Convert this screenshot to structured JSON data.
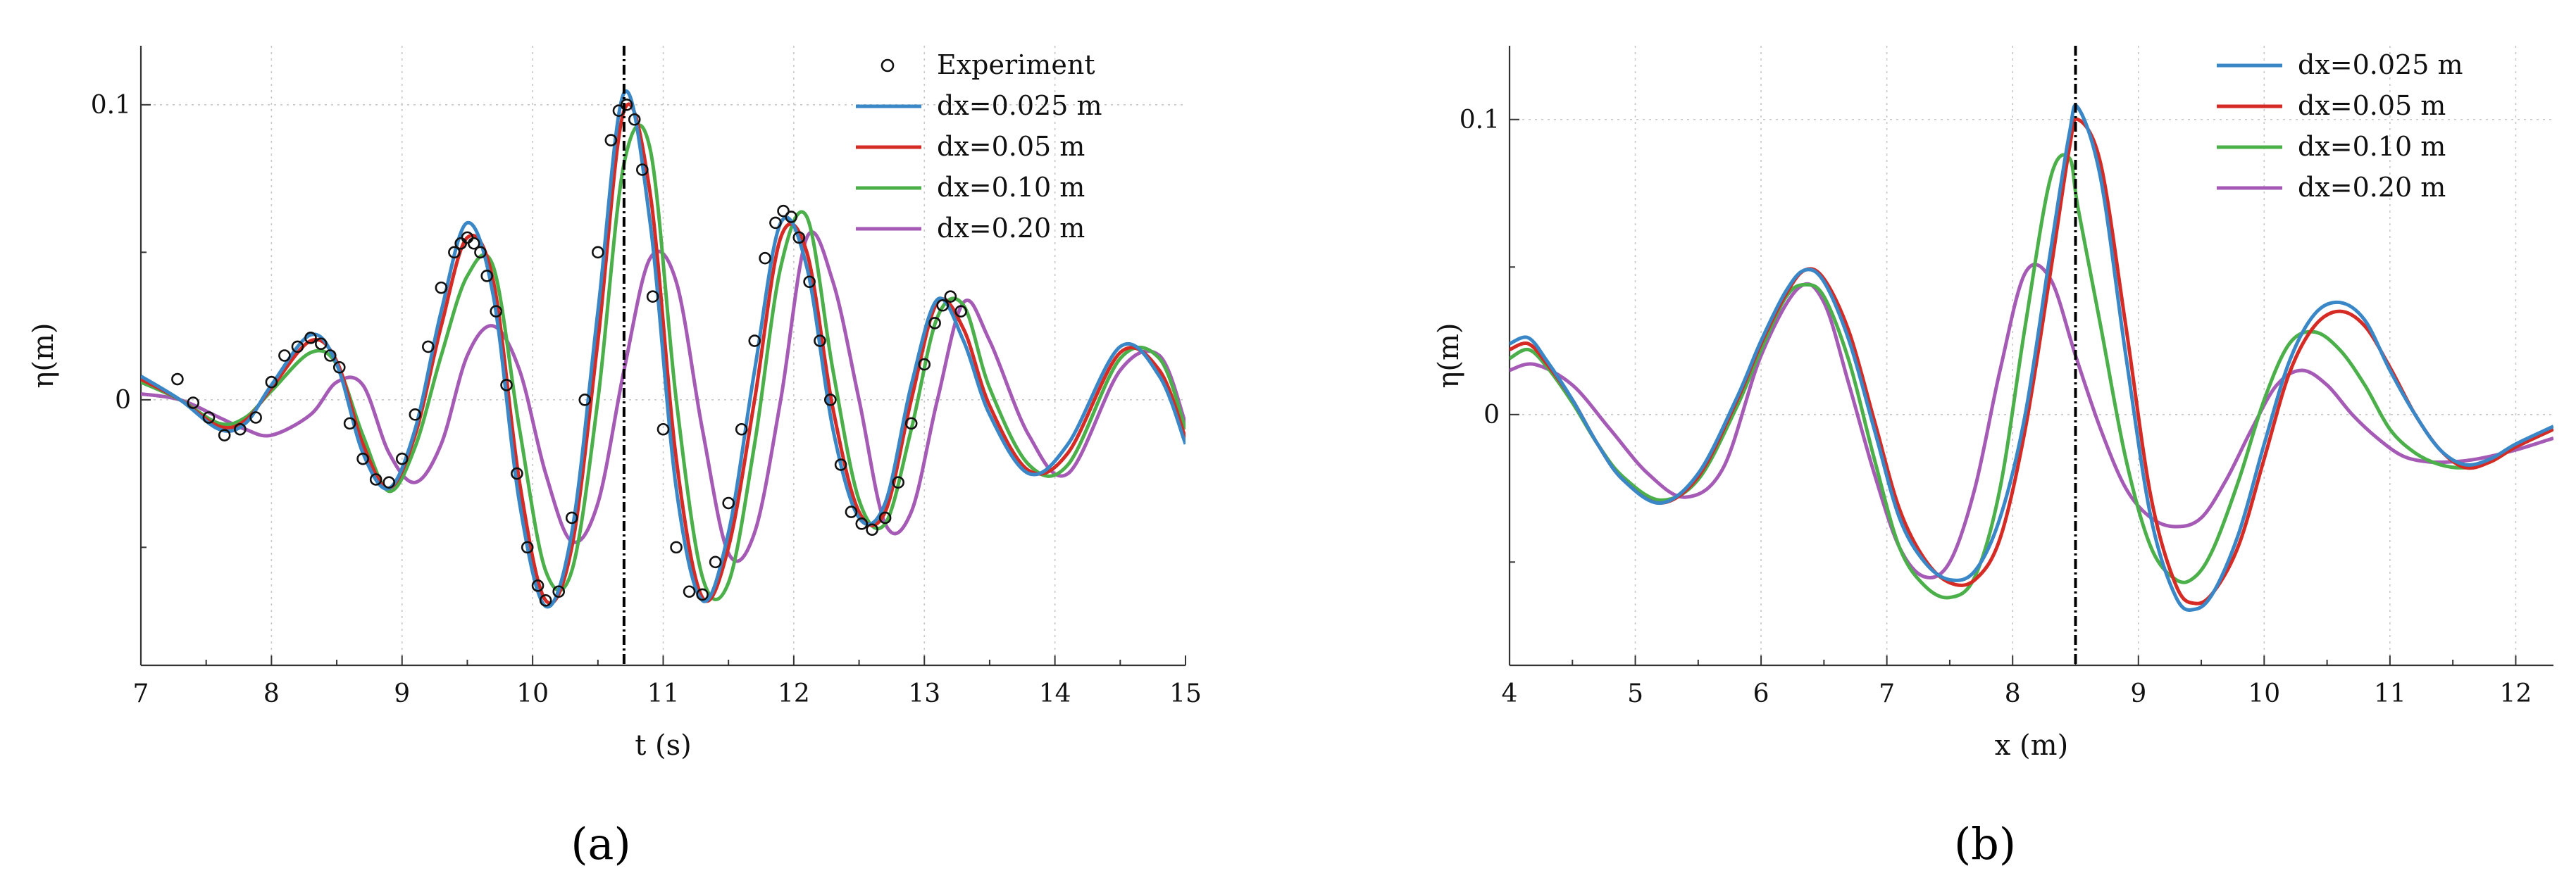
{
  "panels": [
    {
      "id": "a",
      "panel_label": "(a)",
      "xlabel": "t (s)",
      "ylabel": "η(m)",
      "xlim": [
        7,
        15
      ],
      "ylim": [
        -0.09,
        0.12
      ],
      "xticks": [
        7,
        8,
        9,
        10,
        11,
        12,
        13,
        14,
        15
      ],
      "yticks": [
        0,
        0.1
      ],
      "xtick_labels": [
        "7",
        "8",
        "9",
        "10",
        "11",
        "12",
        "13",
        "14",
        "15"
      ],
      "ytick_labels": [
        "0",
        "0.1"
      ],
      "vline_x": 10.7,
      "legend": [
        "Experiment",
        "dx=0.025 m",
        "dx=0.05 m",
        "dx=0.10 m",
        "dx=0.20 m"
      ]
    },
    {
      "id": "b",
      "panel_label": "(b)",
      "xlabel": "x (m)",
      "ylabel": "η(m)",
      "xlim": [
        4,
        12.3
      ],
      "ylim": [
        -0.085,
        0.125
      ],
      "xticks": [
        4,
        5,
        6,
        7,
        8,
        9,
        10,
        11,
        12
      ],
      "yticks": [
        0,
        0.1
      ],
      "xtick_labels": [
        "4",
        "5",
        "6",
        "7",
        "8",
        "9",
        "10",
        "11",
        "12"
      ],
      "ytick_labels": [
        "0",
        "0.1"
      ],
      "vline_x": 8.5,
      "legend": [
        "dx=0.025 m",
        "dx=0.05 m",
        "dx=0.10 m",
        "dx=0.20 m"
      ]
    }
  ],
  "colors": {
    "dx_0_025": "#3a87c8",
    "dx_0_05": "#d62a24",
    "dx_0_10": "#4cb04a",
    "dx_0_20": "#a55bb5",
    "experiment": "#111111"
  },
  "chart_data": [
    {
      "type": "line",
      "panel": "a",
      "xlabel": "t (s)",
      "ylabel": "η(m)",
      "xlim": [
        7,
        15
      ],
      "ylim": [
        -0.09,
        0.12
      ],
      "series": [
        {
          "name": "dx=0.025 m",
          "color": "#3a87c8",
          "x": [
            7,
            7.3,
            7.6,
            7.8,
            8.0,
            8.3,
            8.5,
            8.7,
            8.9,
            9.1,
            9.3,
            9.5,
            9.7,
            9.9,
            10.1,
            10.3,
            10.5,
            10.7,
            10.9,
            11.1,
            11.3,
            11.5,
            11.7,
            11.9,
            12.1,
            12.3,
            12.5,
            12.7,
            12.9,
            13.1,
            13.3,
            13.5,
            13.8,
            14.1,
            14.5,
            14.8,
            15
          ],
          "y": [
            0.008,
            0.0,
            -0.01,
            -0.008,
            0.005,
            0.022,
            0.012,
            -0.018,
            -0.03,
            -0.01,
            0.03,
            0.06,
            0.035,
            -0.035,
            -0.07,
            -0.045,
            0.03,
            0.104,
            0.06,
            -0.03,
            -0.068,
            -0.045,
            0.01,
            0.06,
            0.045,
            -0.01,
            -0.04,
            -0.035,
            0.005,
            0.034,
            0.02,
            -0.005,
            -0.025,
            -0.015,
            0.018,
            0.008,
            -0.015
          ]
        },
        {
          "name": "dx=0.05 m",
          "color": "#d62a24",
          "x": [
            7,
            7.3,
            7.6,
            7.8,
            8.0,
            8.3,
            8.5,
            8.7,
            8.9,
            9.1,
            9.3,
            9.5,
            9.7,
            9.9,
            10.1,
            10.3,
            10.5,
            10.7,
            10.9,
            11.1,
            11.3,
            11.5,
            11.7,
            11.9,
            12.1,
            12.3,
            12.5,
            12.7,
            12.9,
            13.1,
            13.3,
            13.5,
            13.8,
            14.1,
            14.5,
            14.8,
            15
          ],
          "y": [
            0.007,
            0.0,
            -0.009,
            -0.007,
            0.004,
            0.02,
            0.013,
            -0.015,
            -0.03,
            -0.012,
            0.025,
            0.055,
            0.04,
            -0.028,
            -0.068,
            -0.05,
            0.02,
            0.098,
            0.07,
            -0.02,
            -0.067,
            -0.05,
            0.0,
            0.055,
            0.05,
            -0.003,
            -0.038,
            -0.038,
            0.0,
            0.033,
            0.024,
            -0.002,
            -0.024,
            -0.018,
            0.016,
            0.01,
            -0.013
          ]
        },
        {
          "name": "dx=0.10 m",
          "color": "#4cb04a",
          "x": [
            7,
            7.3,
            7.6,
            7.8,
            8.0,
            8.3,
            8.5,
            8.7,
            8.9,
            9.1,
            9.3,
            9.5,
            9.7,
            9.9,
            10.1,
            10.3,
            10.5,
            10.7,
            10.9,
            11.1,
            11.3,
            11.5,
            11.7,
            11.9,
            12.1,
            12.3,
            12.5,
            12.7,
            12.9,
            13.1,
            13.3,
            13.5,
            13.8,
            14.1,
            14.5,
            14.8,
            15
          ],
          "y": [
            0.006,
            0.0,
            -0.008,
            -0.006,
            0.003,
            0.016,
            0.012,
            -0.012,
            -0.031,
            -0.016,
            0.015,
            0.042,
            0.045,
            -0.01,
            -0.058,
            -0.058,
            0.0,
            0.08,
            0.085,
            0.0,
            -0.06,
            -0.062,
            -0.015,
            0.045,
            0.062,
            0.01,
            -0.034,
            -0.042,
            -0.01,
            0.028,
            0.032,
            0.004,
            -0.022,
            -0.022,
            0.014,
            0.014,
            -0.01
          ]
        },
        {
          "name": "dx=0.20 m",
          "color": "#a55bb5",
          "x": [
            7,
            7.3,
            7.6,
            7.8,
            8.0,
            8.3,
            8.5,
            8.7,
            8.9,
            9.1,
            9.3,
            9.5,
            9.7,
            9.9,
            10.1,
            10.3,
            10.5,
            10.7,
            10.9,
            11.1,
            11.3,
            11.5,
            11.7,
            11.9,
            12.1,
            12.3,
            12.5,
            12.7,
            12.9,
            13.1,
            13.3,
            13.5,
            13.8,
            14.1,
            14.5,
            14.8,
            15
          ],
          "y": [
            0.002,
            0.0,
            -0.006,
            -0.01,
            -0.012,
            -0.005,
            0.006,
            0.005,
            -0.018,
            -0.028,
            -0.015,
            0.015,
            0.025,
            0.01,
            -0.025,
            -0.048,
            -0.035,
            0.01,
            0.048,
            0.04,
            -0.01,
            -0.052,
            -0.045,
            0.0,
            0.055,
            0.04,
            0.0,
            -0.042,
            -0.038,
            0.0,
            0.033,
            0.02,
            -0.012,
            -0.025,
            0.01,
            0.015,
            -0.008
          ]
        },
        {
          "name": "Experiment",
          "color": "#111111",
          "marker": "circle",
          "x": [
            7.28,
            7.4,
            7.52,
            7.64,
            7.76,
            7.88,
            8.0,
            8.1,
            8.2,
            8.3,
            8.38,
            8.45,
            8.52,
            8.6,
            8.7,
            8.8,
            8.9,
            9.0,
            9.1,
            9.2,
            9.3,
            9.4,
            9.45,
            9.5,
            9.55,
            9.6,
            9.65,
            9.72,
            9.8,
            9.88,
            9.96,
            10.04,
            10.1,
            10.2,
            10.3,
            10.4,
            10.5,
            10.6,
            10.66,
            10.72,
            10.78,
            10.84,
            10.92,
            11.0,
            11.1,
            11.2,
            11.3,
            11.4,
            11.5,
            11.6,
            11.7,
            11.78,
            11.86,
            11.92,
            11.98,
            12.04,
            12.12,
            12.2,
            12.28,
            12.36,
            12.44,
            12.52,
            12.6,
            12.7,
            12.8,
            12.9,
            13.0,
            13.08,
            13.14,
            13.2,
            13.28
          ],
          "y": [
            0.007,
            -0.001,
            -0.006,
            -0.012,
            -0.01,
            -0.006,
            0.006,
            0.015,
            0.018,
            0.021,
            0.019,
            0.015,
            0.011,
            -0.008,
            -0.02,
            -0.027,
            -0.028,
            -0.02,
            -0.005,
            0.018,
            0.038,
            0.05,
            0.053,
            0.055,
            0.053,
            0.05,
            0.042,
            0.03,
            0.005,
            -0.025,
            -0.05,
            -0.063,
            -0.068,
            -0.065,
            -0.04,
            0.0,
            0.05,
            0.088,
            0.098,
            0.1,
            0.095,
            0.078,
            0.035,
            -0.01,
            -0.05,
            -0.065,
            -0.066,
            -0.055,
            -0.035,
            -0.01,
            0.02,
            0.048,
            0.06,
            0.064,
            0.062,
            0.055,
            0.04,
            0.02,
            0.0,
            -0.022,
            -0.038,
            -0.042,
            -0.044,
            -0.04,
            -0.028,
            -0.008,
            0.012,
            0.026,
            0.032,
            0.035,
            0.03
          ]
        }
      ]
    },
    {
      "type": "line",
      "panel": "b",
      "xlabel": "x (m)",
      "ylabel": "η(m)",
      "xlim": [
        4,
        12.3
      ],
      "ylim": [
        -0.085,
        0.125
      ],
      "series": [
        {
          "name": "dx=0.025 m",
          "color": "#3a87c8",
          "x": [
            4.0,
            4.15,
            4.3,
            4.5,
            4.7,
            4.9,
            5.2,
            5.5,
            5.8,
            6.0,
            6.2,
            6.35,
            6.5,
            6.7,
            6.9,
            7.1,
            7.3,
            7.5,
            7.7,
            7.9,
            8.1,
            8.3,
            8.45,
            8.52,
            8.7,
            8.9,
            9.1,
            9.3,
            9.45,
            9.6,
            9.8,
            10.0,
            10.2,
            10.4,
            10.6,
            10.8,
            11.0,
            11.2,
            11.4,
            11.6,
            11.8,
            12.0,
            12.3
          ],
          "y": [
            0.024,
            0.026,
            0.018,
            0.005,
            -0.01,
            -0.022,
            -0.03,
            -0.02,
            0.005,
            0.025,
            0.042,
            0.049,
            0.045,
            0.025,
            -0.005,
            -0.035,
            -0.05,
            -0.056,
            -0.053,
            -0.035,
            0.0,
            0.055,
            0.095,
            0.104,
            0.08,
            0.02,
            -0.035,
            -0.062,
            -0.066,
            -0.06,
            -0.04,
            -0.01,
            0.018,
            0.034,
            0.038,
            0.032,
            0.015,
            0.0,
            -0.012,
            -0.017,
            -0.015,
            -0.01,
            -0.004
          ]
        },
        {
          "name": "dx=0.05 m",
          "color": "#d62a24",
          "x": [
            4.0,
            4.15,
            4.3,
            4.5,
            4.7,
            4.9,
            5.2,
            5.5,
            5.8,
            6.0,
            6.2,
            6.35,
            6.5,
            6.7,
            6.9,
            7.1,
            7.3,
            7.5,
            7.7,
            7.9,
            8.1,
            8.3,
            8.45,
            8.52,
            8.7,
            8.9,
            9.1,
            9.3,
            9.45,
            9.6,
            9.8,
            10.0,
            10.2,
            10.4,
            10.6,
            10.8,
            11.0,
            11.2,
            11.4,
            11.6,
            11.8,
            12.0,
            12.3
          ],
          "y": [
            0.022,
            0.024,
            0.017,
            0.005,
            -0.01,
            -0.022,
            -0.03,
            -0.021,
            0.004,
            0.024,
            0.041,
            0.049,
            0.046,
            0.028,
            -0.002,
            -0.032,
            -0.049,
            -0.057,
            -0.056,
            -0.042,
            -0.005,
            0.048,
            0.09,
            0.1,
            0.085,
            0.03,
            -0.028,
            -0.058,
            -0.064,
            -0.06,
            -0.044,
            -0.015,
            0.014,
            0.03,
            0.035,
            0.03,
            0.016,
            0.0,
            -0.012,
            -0.018,
            -0.016,
            -0.011,
            -0.005
          ]
        },
        {
          "name": "dx=0.10 m",
          "color": "#4cb04a",
          "x": [
            4.0,
            4.15,
            4.3,
            4.5,
            4.7,
            4.9,
            5.2,
            5.5,
            5.8,
            6.0,
            6.2,
            6.35,
            6.5,
            6.7,
            6.9,
            7.1,
            7.3,
            7.5,
            7.7,
            7.9,
            8.1,
            8.3,
            8.45,
            8.52,
            8.7,
            8.9,
            9.1,
            9.3,
            9.45,
            9.6,
            9.8,
            10.0,
            10.2,
            10.4,
            10.6,
            10.8,
            11.0,
            11.2,
            11.4,
            11.6,
            11.8,
            12.0,
            12.3
          ],
          "y": [
            0.019,
            0.022,
            0.016,
            0.004,
            -0.01,
            -0.021,
            -0.029,
            -0.022,
            0.002,
            0.022,
            0.04,
            0.044,
            0.04,
            0.018,
            -0.015,
            -0.045,
            -0.058,
            -0.062,
            -0.055,
            -0.025,
            0.03,
            0.08,
            0.087,
            0.07,
            0.03,
            -0.015,
            -0.045,
            -0.056,
            -0.055,
            -0.045,
            -0.022,
            0.005,
            0.024,
            0.028,
            0.022,
            0.01,
            -0.005,
            -0.013,
            -0.017,
            -0.018,
            -0.016,
            -0.011,
            -0.005
          ]
        },
        {
          "name": "dx=0.20 m",
          "color": "#a55bb5",
          "x": [
            4.0,
            4.2,
            4.5,
            4.8,
            5.1,
            5.4,
            5.7,
            6.0,
            6.3,
            6.5,
            6.7,
            6.9,
            7.1,
            7.3,
            7.5,
            7.7,
            7.9,
            8.1,
            8.3,
            8.5,
            8.7,
            8.9,
            9.1,
            9.3,
            9.5,
            9.7,
            9.9,
            10.1,
            10.3,
            10.5,
            10.7,
            10.9,
            11.1,
            11.3,
            11.5,
            11.7,
            12.0,
            12.3
          ],
          "y": [
            0.015,
            0.017,
            0.01,
            -0.005,
            -0.02,
            -0.028,
            -0.018,
            0.02,
            0.043,
            0.038,
            0.01,
            -0.02,
            -0.045,
            -0.055,
            -0.05,
            -0.025,
            0.015,
            0.048,
            0.046,
            0.02,
            -0.005,
            -0.025,
            -0.035,
            -0.038,
            -0.035,
            -0.022,
            -0.005,
            0.01,
            0.015,
            0.01,
            0.0,
            -0.008,
            -0.014,
            -0.016,
            -0.016,
            -0.015,
            -0.012,
            -0.008
          ]
        }
      ]
    }
  ]
}
